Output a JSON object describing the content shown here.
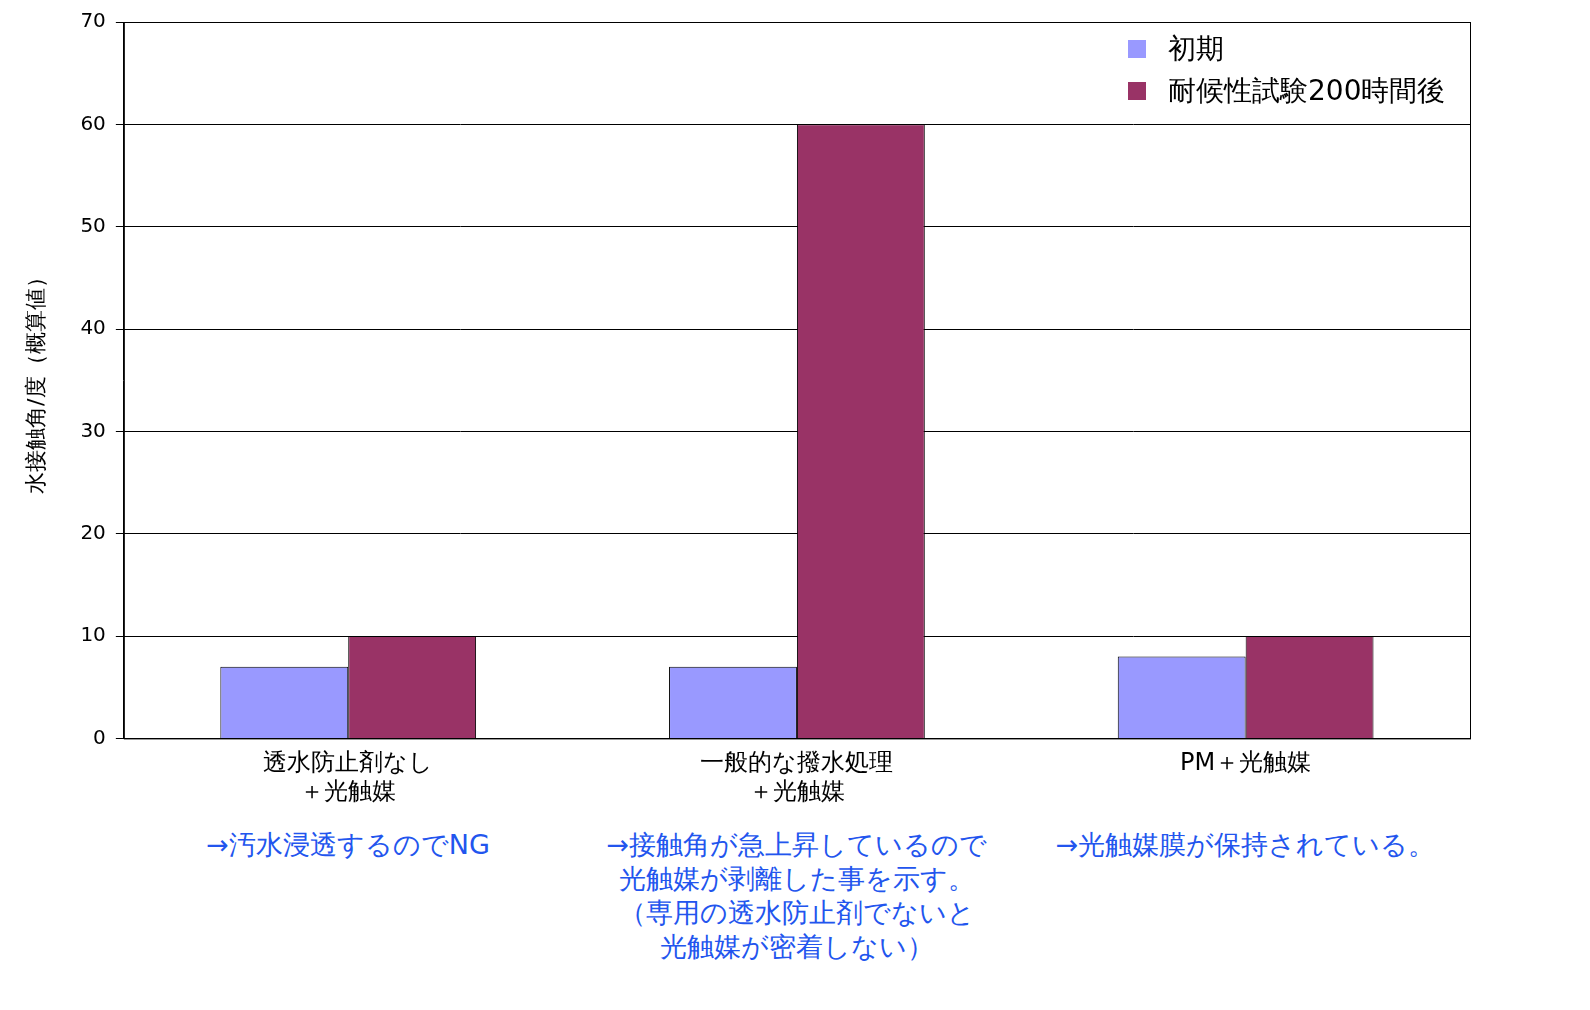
{
  "chart_data": {
    "type": "bar",
    "y_label": "水接触角/度（概算値）",
    "categories": [
      [
        "透水防止剤なし",
        "＋光触媒"
      ],
      [
        "一般的な撥水処理",
        "＋光触媒"
      ],
      "PM＋光触媒"
    ],
    "series": [
      {
        "name": "初期",
        "color": "#9999ff",
        "values": [
          7,
          7,
          8
        ]
      },
      {
        "name": "耐候性試験200時間後",
        "color": "#993366",
        "values": [
          10,
          60,
          10
        ]
      }
    ],
    "ylim": [
      0,
      70
    ],
    "yticks": [
      0,
      10,
      20,
      30,
      40,
      50,
      60,
      70
    ],
    "grid": true,
    "legend": "upper right",
    "annotations": [
      [
        "→汚水浸透するのでNG"
      ],
      [
        "→接触角が急上昇しているので",
        "光触媒が剥離した事を示す。",
        "（専用の透水防止剤でないと",
        "光触媒が密着しない）"
      ],
      [
        "→光触媒膜が保持されている。"
      ]
    ]
  }
}
